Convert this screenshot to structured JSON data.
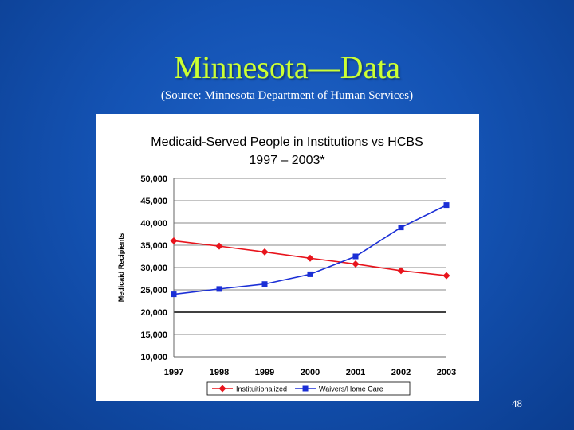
{
  "slide": {
    "title": "Minnesota—Data",
    "subtitle": "(Source: Minnesota Department of Human Services)",
    "page_number": "48",
    "colors": {
      "background": "#1453b4",
      "title": "#ccff33",
      "subtitle": "#ffffff"
    }
  },
  "chart_data": {
    "type": "line",
    "title": "Medicaid-Served People in Institutions vs HCBS",
    "subtitle": "1997 – 2003*",
    "xlabel": "",
    "ylabel": "Medicaid Recipients",
    "x": [
      "1997",
      "1998",
      "1999",
      "2000",
      "2001",
      "2002",
      "2003"
    ],
    "ylim": [
      10000,
      50000
    ],
    "yticks": [
      "10,000",
      "15,000",
      "20,000",
      "25,000",
      "30,000",
      "35,000",
      "40,000",
      "45,000",
      "50,000"
    ],
    "grid": true,
    "legend_position": "bottom",
    "series": [
      {
        "name": "Instituitionalized",
        "color": "#e8141c",
        "marker": "diamond",
        "values": [
          36000,
          34800,
          33500,
          32100,
          30800,
          29300,
          28200
        ]
      },
      {
        "name": "Waivers/Home Care",
        "color": "#1b2fd6",
        "marker": "square",
        "values": [
          24000,
          25200,
          26300,
          28500,
          32500,
          39000,
          44000
        ]
      }
    ]
  }
}
